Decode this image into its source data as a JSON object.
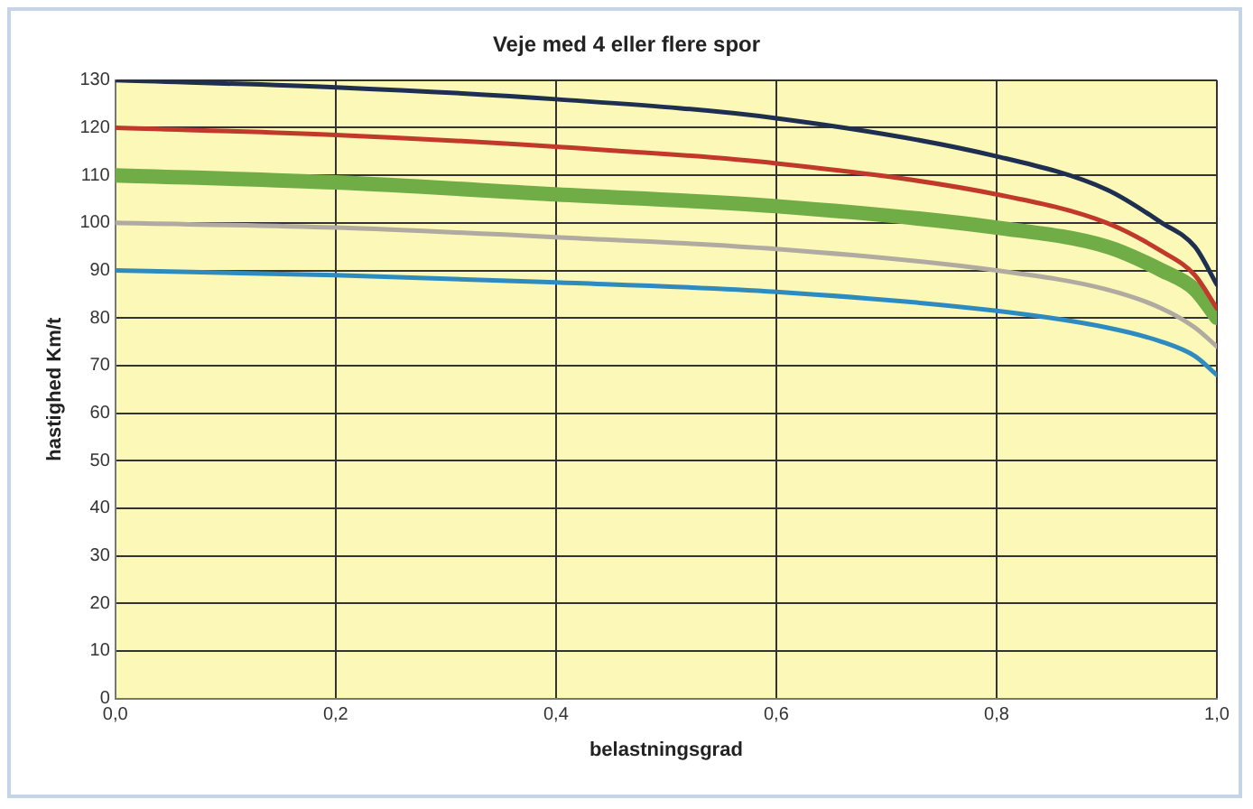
{
  "chart_data": {
    "type": "line",
    "title": "Veje med 4 eller flere spor",
    "xlabel": "belastningsgrad",
    "ylabel": "hastighed Km/t",
    "x": [
      0,
      0.2,
      0.4,
      0.6,
      0.8,
      0.9,
      0.95,
      0.98,
      1.0
    ],
    "series": [
      {
        "color": "#1f2f4f",
        "values": [
          130,
          128.5,
          126,
          122,
          114,
          107,
          100,
          95,
          87
        ]
      },
      {
        "color": "#c0392b",
        "values": [
          120,
          118.5,
          116,
          112.5,
          106,
          100,
          94,
          89,
          82
        ]
      },
      {
        "color": "#70ad47",
        "values": [
          110,
          108.5,
          106,
          103.5,
          99,
          95,
          90,
          86,
          80
        ]
      },
      {
        "color": "#b0aaa0",
        "values": [
          100,
          99,
          97,
          94.5,
          90,
          86,
          82,
          78,
          74
        ]
      },
      {
        "color": "#2e8bc0",
        "values": [
          90,
          89,
          87.5,
          85.5,
          81.5,
          78,
          75,
          72,
          68
        ]
      }
    ],
    "xlim": [
      0,
      1
    ],
    "xticks": [
      {
        "value": 0,
        "label": "0,0"
      },
      {
        "value": 0.2,
        "label": "0,2"
      },
      {
        "value": 0.4,
        "label": "0,4"
      },
      {
        "value": 0.6,
        "label": "0,6"
      },
      {
        "value": 0.8,
        "label": "0,8"
      },
      {
        "value": 1,
        "label": "1,0"
      }
    ],
    "ylim": [
      0,
      130
    ],
    "yticks": [
      0,
      10,
      20,
      30,
      40,
      50,
      60,
      70,
      80,
      90,
      100,
      110,
      120,
      130
    ],
    "grid": true,
    "legend": false,
    "marker": "none",
    "line_style": "solid"
  }
}
